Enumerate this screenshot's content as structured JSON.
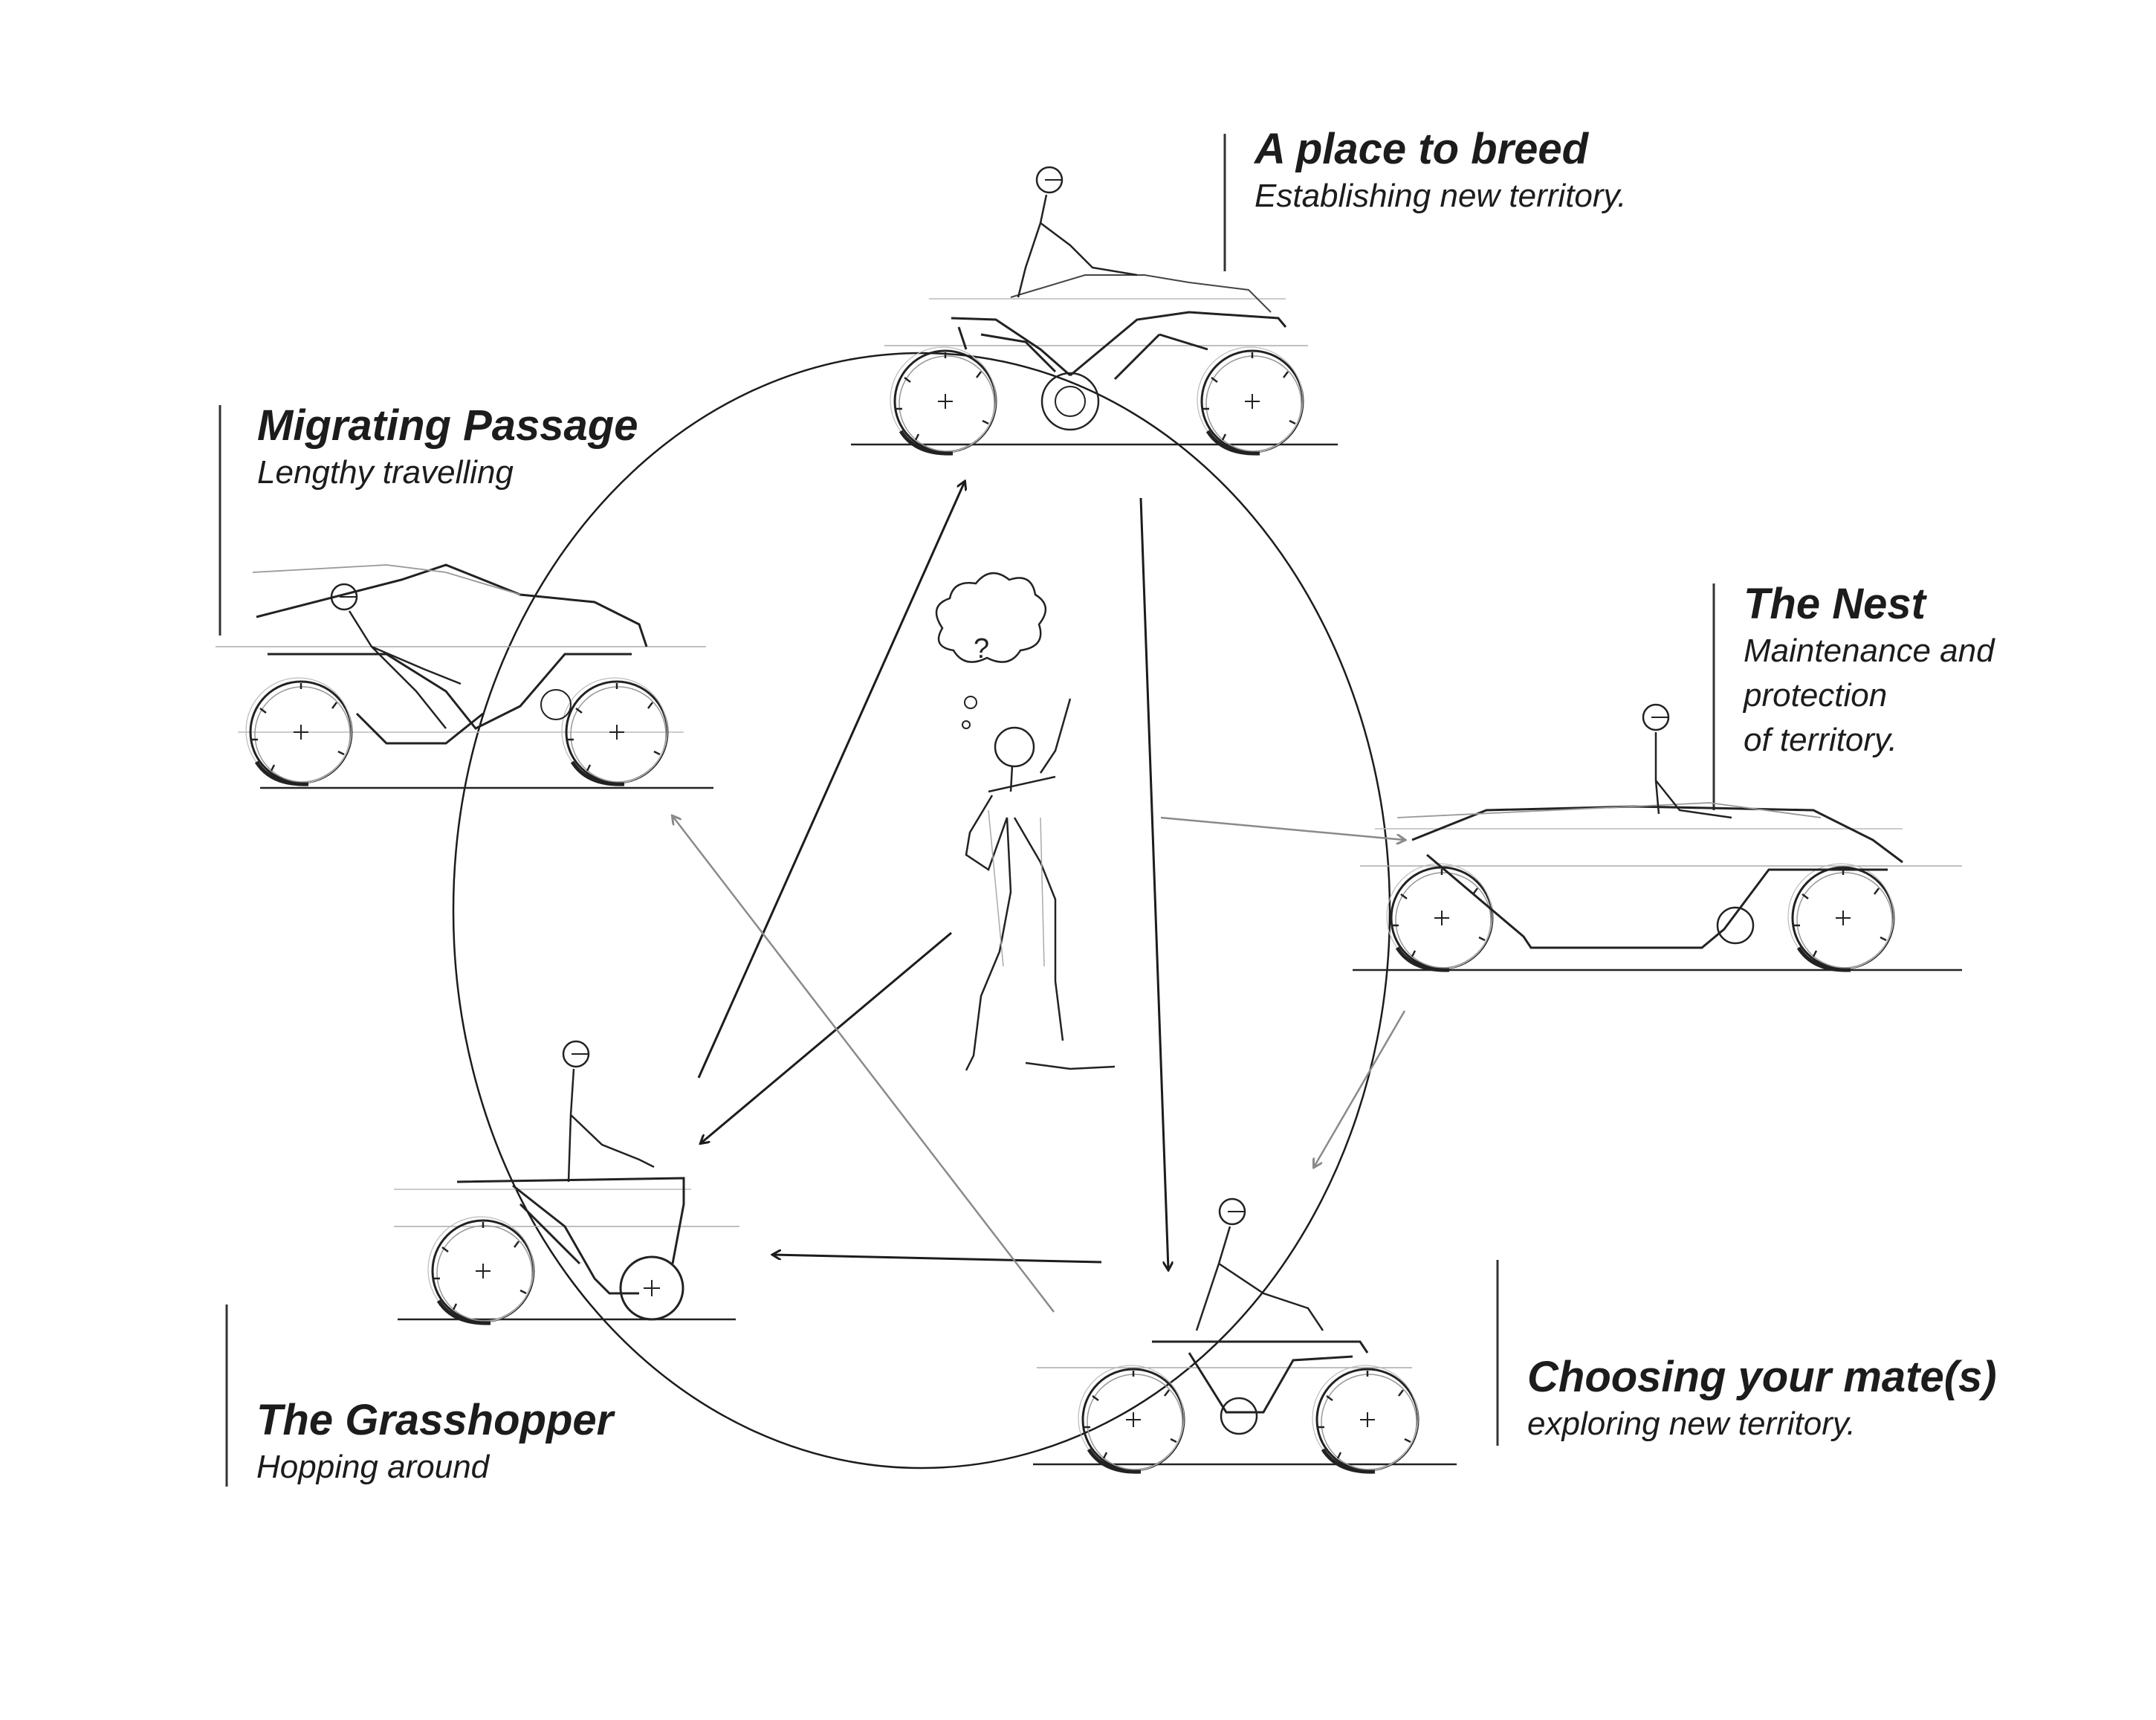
{
  "stages": {
    "breed": {
      "title": "A place to breed",
      "subtitle": "Establishing new territory."
    },
    "migrating": {
      "title": "Migrating Passage",
      "subtitle": "Lengthy travelling"
    },
    "nest": {
      "title": "The Nest",
      "subtitle_lines": [
        "Maintenance and",
        "protection",
        "of territory."
      ]
    },
    "mate": {
      "title": "Choosing your mate(s)",
      "subtitle": "exploring new territory."
    },
    "grasshopper": {
      "title": "The Grasshopper",
      "subtitle": "Hopping around"
    }
  },
  "center_thought_symbol": "?",
  "colors": {
    "ink": "#1c1c1c",
    "sketch": "#222222",
    "pencil": "#8a8a8a",
    "light": "#b8b8b8"
  }
}
